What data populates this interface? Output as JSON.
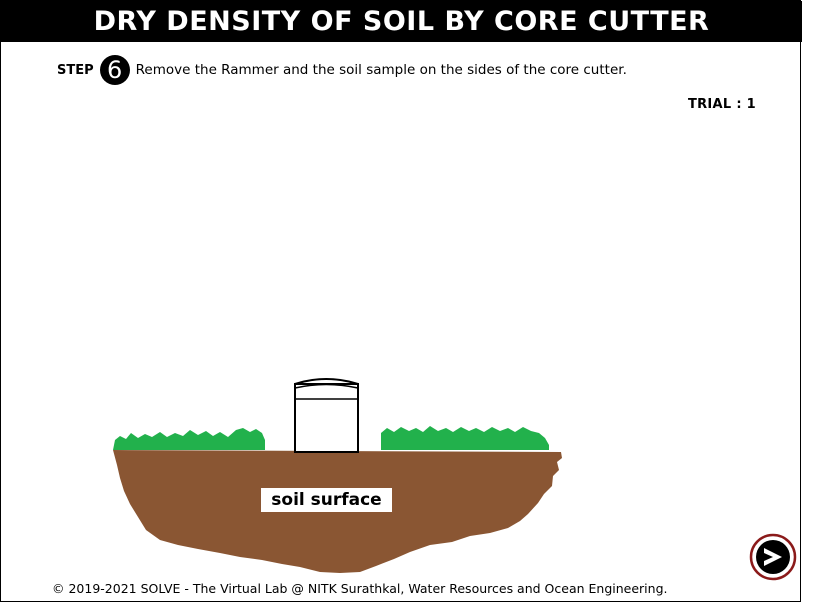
{
  "header": {
    "title": "DRY DENSITY OF SOIL BY CORE CUTTER"
  },
  "step": {
    "label": "STEP",
    "number": "6",
    "instruction": "Remove the Rammer and the soil sample on the sides of the core cutter."
  },
  "trial": {
    "label": "TRIAL : 1"
  },
  "scene": {
    "soil_label": "soil surface",
    "colors": {
      "soil": "#8a5633",
      "grass": "#22b14c",
      "cutter_outline": "#000000"
    }
  },
  "navigation": {
    "next_icon": "next-arrow-icon"
  },
  "footer": {
    "copyright": "© 2019-2021 SOLVE - The Virtual Lab @ NITK Surathkal, Water Resources and Ocean Engineering."
  }
}
